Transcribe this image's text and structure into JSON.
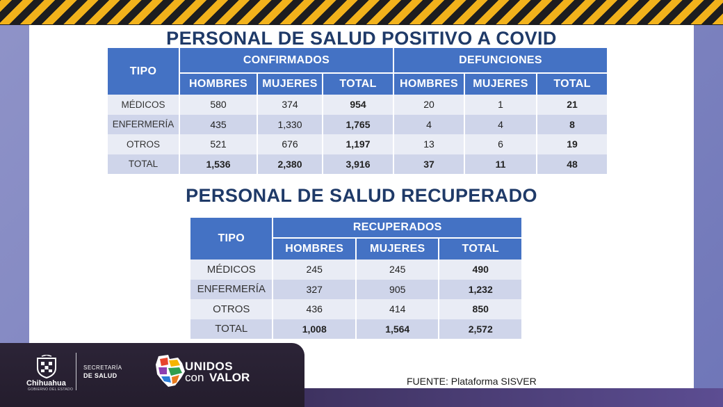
{
  "slide": {
    "title_1": "PERSONAL DE SALUD POSITIVO A COVID",
    "title_2": "PERSONAL DE SALUD RECUPERADO",
    "fuente": "FUENTE: Plataforma SISVER"
  },
  "colors": {
    "header_blue": "#4472c4",
    "row_light": "#e9ecf5",
    "row_dark": "#cfd5ea",
    "title_navy": "#1f3a68",
    "hazard_yellow": "#f2b21b",
    "banner_dark": "#2c2437"
  },
  "covid_table": {
    "tipo_header": "TIPO",
    "group_confirmados": "CONFIRMADOS",
    "group_defunciones": "DEFUNCIONES",
    "sub_headers": [
      "HOMBRES",
      "MUJERES",
      "TOTAL",
      "HOMBRES",
      "MUJERES",
      "TOTAL"
    ],
    "rows": [
      {
        "tipo": "MÉDICOS",
        "c_hombres": "580",
        "c_mujeres": "374",
        "c_total": "954",
        "d_hombres": "20",
        "d_mujeres": "1",
        "d_total": "21"
      },
      {
        "tipo": "ENFERMERÍA",
        "c_hombres": "435",
        "c_mujeres": "1,330",
        "c_total": "1,765",
        "d_hombres": "4",
        "d_mujeres": "4",
        "d_total": "8"
      },
      {
        "tipo": "OTROS",
        "c_hombres": "521",
        "c_mujeres": "676",
        "c_total": "1,197",
        "d_hombres": "13",
        "d_mujeres": "6",
        "d_total": "19"
      },
      {
        "tipo": "TOTAL",
        "c_hombres": "1,536",
        "c_mujeres": "2,380",
        "c_total": "3,916",
        "d_hombres": "37",
        "d_mujeres": "11",
        "d_total": "48"
      }
    ]
  },
  "recuperado_table": {
    "tipo_header": "TIPO",
    "group_recuperados": "RECUPERADOS",
    "sub_headers": [
      "HOMBRES",
      "MUJERES",
      "TOTAL"
    ],
    "rows": [
      {
        "tipo": "MÉDICOS",
        "hombres": "245",
        "mujeres": "245",
        "total": "490"
      },
      {
        "tipo": "ENFERMERÍA",
        "hombres": "327",
        "mujeres": "905",
        "total": "1,232"
      },
      {
        "tipo": "OTROS",
        "hombres": "436",
        "mujeres": "414",
        "total": "850"
      },
      {
        "tipo": "TOTAL",
        "hombres": "1,008",
        "mujeres": "1,564",
        "total": "2,572"
      }
    ]
  },
  "branding": {
    "state_name": "Chihuahua",
    "state_sub": "GOBIERNO DEL ESTADO",
    "secretaria_line1": "SECRETARÍA",
    "secretaria_line2": "DE SALUD",
    "campaign_top": "UNIDOS",
    "campaign_con": "con",
    "campaign_valor": "VALOR",
    "crest_icon": "state-crest-icon",
    "map_icon": "chihuahua-map-icon"
  }
}
